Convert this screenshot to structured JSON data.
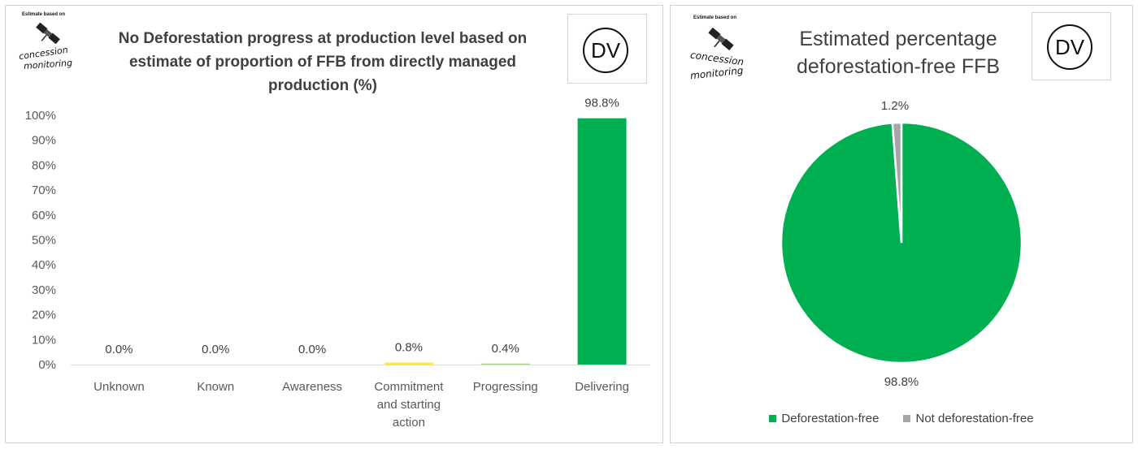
{
  "charts": {
    "bar": {
      "logo": {
        "caption": "Estimate based on",
        "line1": "concession",
        "line2": "monitoring"
      },
      "badge": "DV",
      "title_lines": [
        "No Deforestation progress at production level based on",
        "estimate of proportion of FFB from directly managed",
        "production (%)"
      ]
    },
    "pie": {
      "logo": {
        "caption": "Estimate based on",
        "line1": "concession",
        "line2": "monitoring"
      },
      "badge": "DV",
      "title_lines": [
        "Estimated percentage",
        "deforestation-free FFB"
      ]
    }
  },
  "chart_data": [
    {
      "type": "bar",
      "title": "No Deforestation progress at production level based on estimate of proportion of FFB from directly managed production (%)",
      "categories": [
        "Unknown",
        "Known",
        "Awareness",
        "Commitment and starting action",
        "Progressing",
        "Delivering"
      ],
      "category_lines": [
        [
          "Unknown"
        ],
        [
          "Known"
        ],
        [
          "Awareness"
        ],
        [
          "Commitment",
          "and starting",
          "action"
        ],
        [
          "Progressing"
        ],
        [
          "Delivering"
        ]
      ],
      "values": [
        0.0,
        0.0,
        0.0,
        0.8,
        0.4,
        98.8
      ],
      "data_labels": [
        "0.0%",
        "0.0%",
        "0.0%",
        "0.8%",
        "0.4%",
        "98.8%"
      ],
      "colors": [
        "#000000",
        "#888888",
        "#f4b183",
        "#ffe93b",
        "#a9d18e",
        "#00b050"
      ],
      "ylim": [
        0,
        100
      ],
      "yticks": [
        "0%",
        "10%",
        "20%",
        "30%",
        "40%",
        "50%",
        "60%",
        "70%",
        "80%",
        "90%",
        "100%"
      ],
      "grid": false
    },
    {
      "type": "pie",
      "title": "Estimated percentage deforestation-free FFB",
      "labels": [
        "Deforestation-free",
        "Not deforestation-free"
      ],
      "values": [
        98.8,
        1.2
      ],
      "data_labels": [
        "98.8%",
        "1.2%"
      ],
      "colors": [
        "#00b050",
        "#a6a6a6"
      ],
      "legend": "bottom"
    }
  ]
}
